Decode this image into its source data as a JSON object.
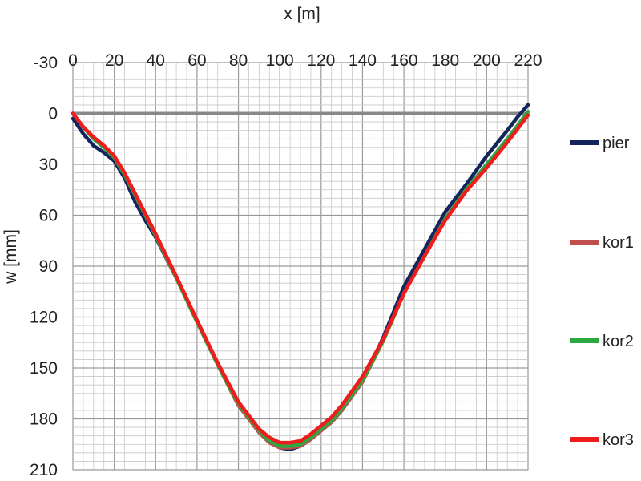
{
  "chart_data": {
    "type": "line",
    "title": "",
    "xlabel": "x   [m]",
    "ylabel": "w   [mm]",
    "xlim": [
      0,
      220
    ],
    "ylim": [
      -30,
      210
    ],
    "y_inverted": true,
    "x_axis_position": "top",
    "x_ticks": [
      0,
      20,
      40,
      60,
      80,
      100,
      120,
      140,
      160,
      180,
      200,
      220
    ],
    "y_ticks": [
      -30,
      0,
      30,
      60,
      90,
      120,
      150,
      180,
      210
    ],
    "x_tick_labels": [
      "0",
      "20",
      "40",
      "60",
      "80",
      "100",
      "120",
      "140",
      "160",
      "180",
      "200",
      "220"
    ],
    "y_tick_labels": [
      "-30",
      "0",
      "30",
      "60",
      "90",
      "120",
      "150",
      "180",
      "210"
    ],
    "grid": true,
    "zero_line": true,
    "legend_position": "right",
    "series": [
      {
        "name": "pier",
        "color": "#14255e",
        "x": [
          0,
          5,
          10,
          15,
          20,
          25,
          30,
          35,
          40,
          50,
          60,
          70,
          80,
          90,
          95,
          100,
          105,
          110,
          115,
          120,
          125,
          130,
          140,
          150,
          160,
          170,
          180,
          190,
          200,
          210,
          215,
          220
        ],
        "y": [
          3,
          12,
          19,
          23,
          28,
          38,
          52,
          63,
          73,
          97,
          122,
          148,
          172,
          188,
          194,
          197,
          198,
          196,
          192,
          186,
          182,
          175,
          158,
          132,
          102,
          80,
          58,
          42,
          25,
          10,
          2,
          -5
        ]
      },
      {
        "name": "kor1",
        "color": "#c0504d",
        "x": [
          0,
          5,
          10,
          15,
          20,
          25,
          30,
          40,
          50,
          60,
          70,
          80,
          90,
          95,
          100,
          105,
          110,
          115,
          120,
          125,
          130,
          140,
          150,
          160,
          170,
          180,
          190,
          200,
          210,
          215,
          220
        ],
        "y": [
          0,
          8,
          15,
          20,
          26,
          36,
          48,
          72,
          97,
          123,
          148,
          172,
          188,
          194,
          197,
          197,
          196,
          192,
          187,
          182,
          175,
          158,
          134,
          106,
          84,
          62,
          45,
          30,
          15,
          7,
          -1
        ]
      },
      {
        "name": "kor2",
        "color": "#2ca840",
        "x": [
          0,
          5,
          10,
          15,
          20,
          25,
          30,
          40,
          50,
          60,
          70,
          80,
          90,
          95,
          100,
          105,
          110,
          115,
          120,
          125,
          130,
          140,
          150,
          160,
          170,
          180,
          190,
          200,
          210,
          215,
          220
        ],
        "y": [
          0,
          8,
          15,
          20,
          26,
          36,
          48,
          72,
          97,
          123,
          148,
          171,
          187,
          193,
          196,
          196,
          195,
          191,
          186,
          181,
          174,
          157,
          134,
          106,
          84,
          62,
          45,
          30,
          15,
          7,
          -1
        ]
      },
      {
        "name": "kor3",
        "color": "#ee1c1c",
        "x": [
          0,
          5,
          10,
          15,
          20,
          25,
          30,
          40,
          50,
          60,
          70,
          80,
          90,
          95,
          100,
          105,
          110,
          115,
          120,
          125,
          130,
          140,
          150,
          160,
          170,
          180,
          190,
          200,
          210,
          215,
          220
        ],
        "y": [
          0,
          8,
          14,
          19,
          25,
          35,
          47,
          71,
          96,
          122,
          147,
          170,
          186,
          191,
          194,
          194,
          193,
          189,
          184,
          179,
          172,
          155,
          133,
          106,
          84,
          63,
          46,
          32,
          17,
          9,
          1
        ]
      }
    ]
  }
}
